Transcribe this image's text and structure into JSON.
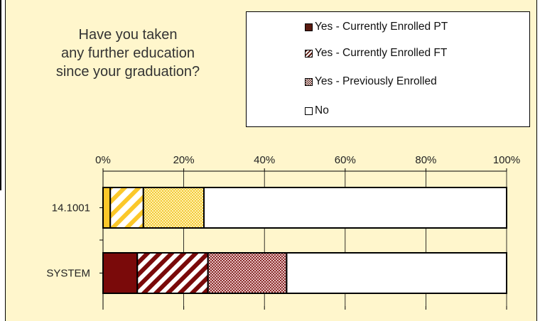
{
  "question_lines": [
    "Have you taken",
    "any further education",
    "since your graduation?"
  ],
  "colors": {
    "panel_bg": "#fff6cc",
    "series_14_1001": "#fbc82a",
    "series_system": "#7a0a0a",
    "no": "#ffffff"
  },
  "chart_data": {
    "type": "bar",
    "orientation": "horizontal",
    "stacked": true,
    "percent_scale": true,
    "categories": [
      "14.1001",
      "SYSTEM"
    ],
    "series": [
      {
        "name": "Yes - Currently Enrolled PT",
        "pattern": "solid",
        "values": [
          1.8,
          8.5
        ]
      },
      {
        "name": "Yes - Currently Enrolled FT",
        "pattern": "diagonal-stripes",
        "values": [
          8.2,
          17.5
        ]
      },
      {
        "name": "Yes - Previously Enrolled",
        "pattern": "checker",
        "values": [
          15.0,
          19.5
        ]
      },
      {
        "name": "No",
        "pattern": "none",
        "values": [
          75.0,
          54.5
        ]
      }
    ],
    "x_ticks": [
      "0%",
      "20%",
      "40%",
      "60%",
      "80%",
      "100%"
    ],
    "xlim": [
      0,
      100
    ],
    "grid": true,
    "legend_position": "top-right"
  }
}
